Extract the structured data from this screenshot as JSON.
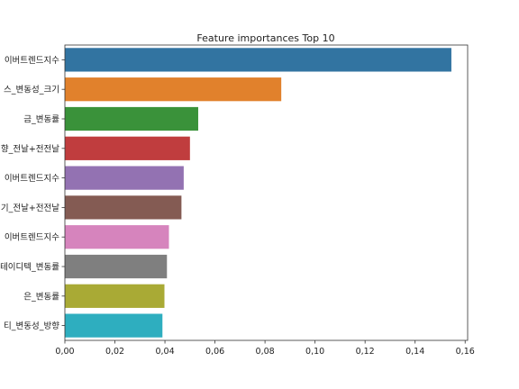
{
  "chart_data": {
    "type": "bar",
    "orientation": "horizontal",
    "title": "Feature importances Top 10",
    "xlabel": "",
    "ylabel": "",
    "xlim": [
      0.0,
      0.161
    ],
    "x_ticks": [
      "0,00",
      "0,02",
      "0,04",
      "0,06",
      "0,08",
      "0,10",
      "0,12",
      "0,14",
      "0,16"
    ],
    "x_tick_values": [
      0,
      0.02,
      0.04,
      0.06,
      0.08,
      0.1,
      0.12,
      0.14,
      0.16
    ],
    "grid": false,
    "categories": [
      "이버트렌드지수",
      "스_변동성_크기",
      "금_변동률",
      "향_전날+전전날",
      "이버트렌드지수",
      "기_전날+전전날",
      "이버트렌드지수",
      "테이디텍_변동률",
      "은_변동률",
      "티_변동성_방향"
    ],
    "values": [
      0.1545,
      0.0865,
      0.0533,
      0.05,
      0.0475,
      0.0466,
      0.0416,
      0.0408,
      0.0398,
      0.039
    ],
    "colors": [
      "#3274a1",
      "#e1812c",
      "#3a923a",
      "#c03d3e",
      "#9372b2",
      "#845b53",
      "#d684bd",
      "#7f7f7f",
      "#a9aa35",
      "#2eaebf"
    ]
  }
}
